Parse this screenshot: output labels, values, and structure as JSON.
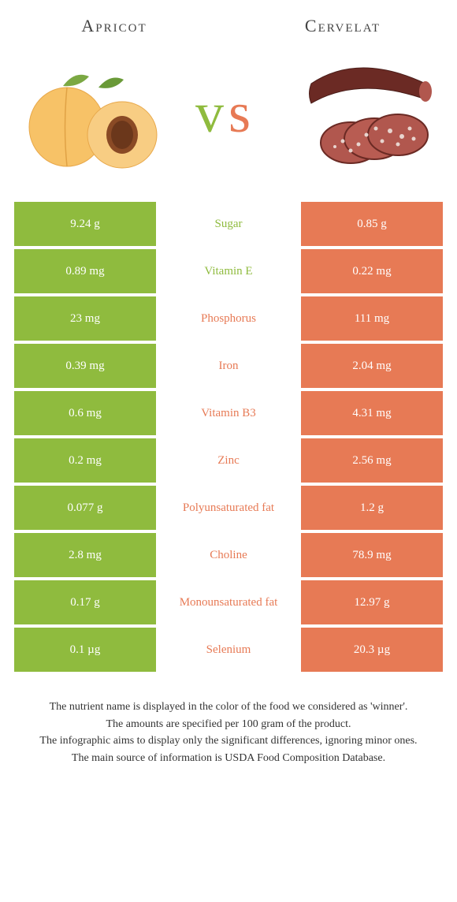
{
  "colors": {
    "left": "#8fbb3e",
    "right": "#e77a55",
    "vs_v": "#8fbb3e",
    "vs_s": "#e77a55"
  },
  "foods": {
    "left": "Apricot",
    "right": "Cervelat"
  },
  "rows": [
    {
      "left": "9.24 g",
      "label": "Sugar",
      "right": "0.85 g",
      "winner": "left"
    },
    {
      "left": "0.89 mg",
      "label": "Vitamin E",
      "right": "0.22 mg",
      "winner": "left"
    },
    {
      "left": "23 mg",
      "label": "Phosphorus",
      "right": "111 mg",
      "winner": "right"
    },
    {
      "left": "0.39 mg",
      "label": "Iron",
      "right": "2.04 mg",
      "winner": "right"
    },
    {
      "left": "0.6 mg",
      "label": "Vitamin B3",
      "right": "4.31 mg",
      "winner": "right"
    },
    {
      "left": "0.2 mg",
      "label": "Zinc",
      "right": "2.56 mg",
      "winner": "right"
    },
    {
      "left": "0.077 g",
      "label": "Polyunsaturated fat",
      "right": "1.2 g",
      "winner": "right"
    },
    {
      "left": "2.8 mg",
      "label": "Choline",
      "right": "78.9 mg",
      "winner": "right"
    },
    {
      "left": "0.17 g",
      "label": "Monounsaturated fat",
      "right": "12.97 g",
      "winner": "right"
    },
    {
      "left": "0.1 µg",
      "label": "Selenium",
      "right": "20.3 µg",
      "winner": "right"
    }
  ],
  "footer": [
    "The nutrient name is displayed in the color of the food we considered as 'winner'.",
    "The amounts are specified per 100 gram of the product.",
    "The infographic aims to display only the significant differences, ignoring minor ones.",
    "The main source of information is USDA Food Composition Database."
  ]
}
